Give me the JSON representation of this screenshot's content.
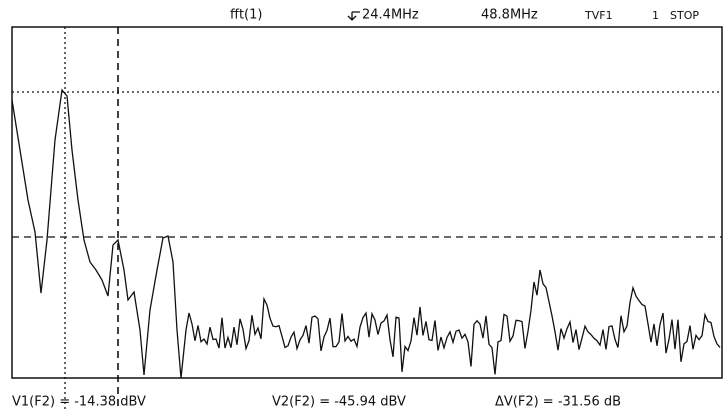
{
  "header": {
    "source": "fft(1)",
    "span_marker": "24.4MHz",
    "span": "48.8MHz",
    "mode": "TVF1",
    "channel": "1",
    "state": "STOP"
  },
  "readouts": {
    "v1": "V1(F2) = -14.38 dBV",
    "v2": "V2(F2) = -45.94 dBV",
    "delta": "ΔV(F2) = -31.56 dB"
  }
}
